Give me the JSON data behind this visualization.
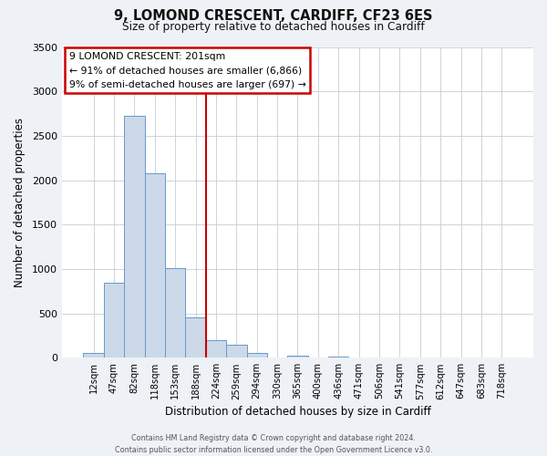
{
  "title_line1": "9, LOMOND CRESCENT, CARDIFF, CF23 6ES",
  "title_line2": "Size of property relative to detached houses in Cardiff",
  "xlabel": "Distribution of detached houses by size in Cardiff",
  "ylabel": "Number of detached properties",
  "bar_labels": [
    "12sqm",
    "47sqm",
    "82sqm",
    "118sqm",
    "153sqm",
    "188sqm",
    "224sqm",
    "259sqm",
    "294sqm",
    "330sqm",
    "365sqm",
    "400sqm",
    "436sqm",
    "471sqm",
    "506sqm",
    "541sqm",
    "577sqm",
    "612sqm",
    "647sqm",
    "683sqm",
    "718sqm"
  ],
  "bar_values": [
    50,
    850,
    2725,
    2075,
    1010,
    460,
    200,
    145,
    55,
    5,
    25,
    5,
    18,
    5,
    0,
    0,
    0,
    0,
    0,
    0,
    0
  ],
  "bar_color": "#ccd9e8",
  "bar_edge_color": "#6699cc",
  "ylim": [
    0,
    3500
  ],
  "yticks": [
    0,
    500,
    1000,
    1500,
    2000,
    2500,
    3000,
    3500
  ],
  "property_line_x": 5.5,
  "property_line_color": "#cc0000",
  "annotation_title": "9 LOMOND CRESCENT: 201sqm",
  "annotation_line1": "← 91% of detached houses are smaller (6,866)",
  "annotation_line2": "9% of semi-detached houses are larger (697) →",
  "annotation_box_color": "#cc0000",
  "footer_line1": "Contains HM Land Registry data © Crown copyright and database right 2024.",
  "footer_line2": "Contains public sector information licensed under the Open Government Licence v3.0.",
  "background_color": "#eef2f7",
  "plot_bg_color": "#ffffff"
}
